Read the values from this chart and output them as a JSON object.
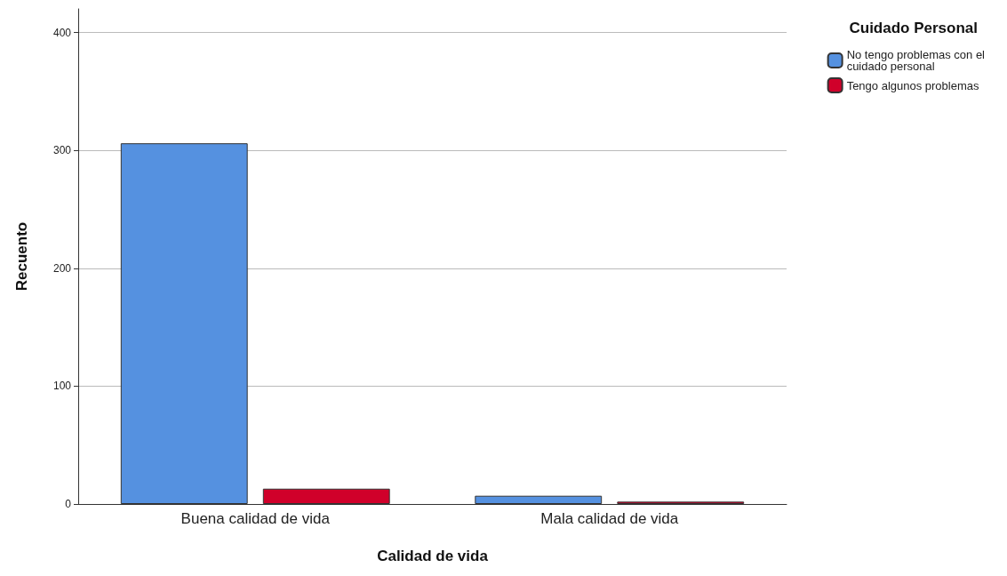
{
  "chart_data": {
    "type": "bar",
    "xlabel": "Calidad de vida",
    "ylabel": "Recuento",
    "legend_title": "Cuidado Personal",
    "categories": [
      "Buena calidad de vida",
      "Mala calidad de vida"
    ],
    "series": [
      {
        "name": "No tengo problemas con el\ncuidado personal",
        "color": "#5591e0",
        "values": [
          306,
          7
        ]
      },
      {
        "name": "Tengo algunos problemas",
        "color": "#d0002a",
        "values": [
          13,
          2
        ]
      }
    ],
    "ylim": [
      0,
      420
    ],
    "yticks": [
      0,
      100,
      200,
      300,
      400
    ],
    "grid": "y",
    "legend": "top right"
  }
}
